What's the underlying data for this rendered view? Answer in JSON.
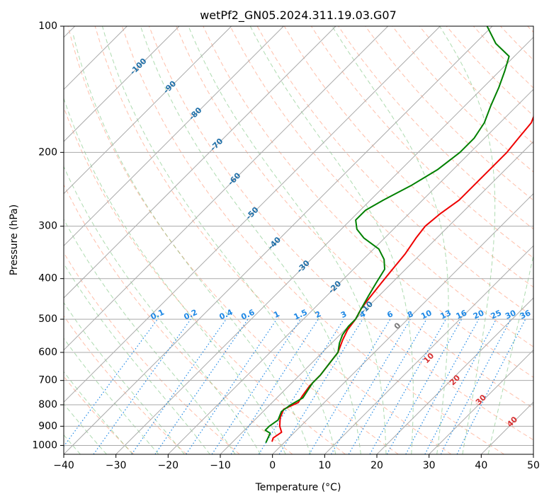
{
  "chart_data": {
    "type": "line",
    "title": "wetPf2_GN05.2024.311.19.03.G07",
    "xlabel": "Temperature (°C)",
    "ylabel": "Pressure (hPa)",
    "xlim": [
      -40,
      50
    ],
    "ylim": [
      1050,
      100
    ],
    "y_scale": "log",
    "grid": true,
    "x_ticks": [
      -40,
      -30,
      -20,
      -10,
      0,
      10,
      20,
      30,
      40,
      50
    ],
    "y_ticks": [
      100,
      200,
      300,
      400,
      500,
      600,
      700,
      800,
      900,
      1000
    ],
    "colors": {
      "temperature": "#ee0000",
      "dewpoint": "#008000",
      "isotherm_label": "#1f6fa8",
      "mixing_ratio": "#1e88e5",
      "moist_adiabat": "#d63031",
      "dry_adiabat": "#ff8a65",
      "moist_adiabat_lines": "#4caf50",
      "grid": "#aaaaaa"
    },
    "isotherm_labels": [
      {
        "value": "-100",
        "T": -100,
        "p": 125
      },
      {
        "value": "-90",
        "T": -90,
        "p": 140
      },
      {
        "value": "-80",
        "T": -80,
        "p": 162
      },
      {
        "value": "-70",
        "T": -70,
        "p": 192
      },
      {
        "value": "-60",
        "T": -60,
        "p": 232
      },
      {
        "value": "-50",
        "T": -50,
        "p": 280
      },
      {
        "value": "-40",
        "T": -40,
        "p": 330
      },
      {
        "value": "-30",
        "T": -30,
        "p": 375
      },
      {
        "value": "-20",
        "T": -20,
        "p": 420
      },
      {
        "value": "-10",
        "T": -10,
        "p": 470
      }
    ],
    "mixing_ratio_labels": [
      "0.1",
      "0.2",
      "0.4",
      "0.6",
      "1",
      "1.5",
      "2",
      "3",
      "4",
      "6",
      "8",
      "10",
      "13",
      "16",
      "20",
      "25",
      "30",
      "36"
    ],
    "mixing_ratio_values": [
      0.1,
      0.2,
      0.4,
      0.6,
      1,
      1.5,
      2,
      3,
      4,
      6,
      8,
      10,
      13,
      16,
      20,
      25,
      30,
      36
    ],
    "moist_adiabat_labels": [
      {
        "value": "0",
        "T": 24,
        "p": 520
      },
      {
        "value": "10",
        "T": 30,
        "p": 620
      },
      {
        "value": "20",
        "T": 35,
        "p": 700
      },
      {
        "value": "30",
        "T": 40,
        "p": 780
      },
      {
        "value": "40",
        "T": 46,
        "p": 880
      }
    ],
    "series": [
      {
        "name": "",
        "role": "temperature",
        "points": [
          {
            "p": 980,
            "T": -2.5
          },
          {
            "p": 960,
            "T": -3
          },
          {
            "p": 930,
            "T": -2.5
          },
          {
            "p": 900,
            "T": -4
          },
          {
            "p": 860,
            "T": -5.5
          },
          {
            "p": 820,
            "T": -6.5
          },
          {
            "p": 790,
            "T": -5
          },
          {
            "p": 760,
            "T": -5.5
          },
          {
            "p": 720,
            "T": -6
          },
          {
            "p": 680,
            "T": -6
          },
          {
            "p": 640,
            "T": -6.5
          },
          {
            "p": 600,
            "T": -7
          },
          {
            "p": 560,
            "T": -8.5
          },
          {
            "p": 530,
            "T": -9.5
          },
          {
            "p": 500,
            "T": -10
          },
          {
            "p": 470,
            "T": -11
          },
          {
            "p": 440,
            "T": -11.5
          },
          {
            "p": 410,
            "T": -12
          },
          {
            "p": 380,
            "T": -12.5
          },
          {
            "p": 350,
            "T": -13
          },
          {
            "p": 320,
            "T": -14
          },
          {
            "p": 300,
            "T": -14.5
          },
          {
            "p": 280,
            "T": -14
          },
          {
            "p": 260,
            "T": -13
          },
          {
            "p": 240,
            "T": -13
          },
          {
            "p": 220,
            "T": -13
          },
          {
            "p": 200,
            "T": -13
          },
          {
            "p": 185,
            "T": -13.5
          },
          {
            "p": 170,
            "T": -14
          },
          {
            "p": 155,
            "T": -16
          },
          {
            "p": 140,
            "T": -19
          },
          {
            "p": 125,
            "T": -22
          },
          {
            "p": 112,
            "T": -26
          },
          {
            "p": 100,
            "T": -31
          }
        ]
      },
      {
        "name": "",
        "role": "dewpoint",
        "points": [
          {
            "p": 985,
            "T": -3.5
          },
          {
            "p": 960,
            "T": -4
          },
          {
            "p": 935,
            "T": -4.5
          },
          {
            "p": 920,
            "T": -6
          },
          {
            "p": 900,
            "T": -6
          },
          {
            "p": 870,
            "T": -5.5
          },
          {
            "p": 830,
            "T": -6.5
          },
          {
            "p": 800,
            "T": -6
          },
          {
            "p": 770,
            "T": -5
          },
          {
            "p": 740,
            "T": -5.5
          },
          {
            "p": 710,
            "T": -6
          },
          {
            "p": 680,
            "T": -6
          },
          {
            "p": 640,
            "T": -6.5
          },
          {
            "p": 600,
            "T": -7
          },
          {
            "p": 570,
            "T": -8.5
          },
          {
            "p": 545,
            "T": -9.5
          },
          {
            "p": 520,
            "T": -10
          },
          {
            "p": 500,
            "T": -10
          },
          {
            "p": 470,
            "T": -11
          },
          {
            "p": 440,
            "T": -12
          },
          {
            "p": 410,
            "T": -13
          },
          {
            "p": 380,
            "T": -14
          },
          {
            "p": 360,
            "T": -16
          },
          {
            "p": 340,
            "T": -19
          },
          {
            "p": 320,
            "T": -24
          },
          {
            "p": 305,
            "T": -27
          },
          {
            "p": 290,
            "T": -29
          },
          {
            "p": 275,
            "T": -29
          },
          {
            "p": 260,
            "T": -27.5
          },
          {
            "p": 240,
            "T": -25
          },
          {
            "p": 220,
            "T": -23
          },
          {
            "p": 200,
            "T": -22
          },
          {
            "p": 185,
            "T": -22
          },
          {
            "p": 170,
            "T": -23
          },
          {
            "p": 155,
            "T": -25
          },
          {
            "p": 140,
            "T": -27
          },
          {
            "p": 128,
            "T": -29
          },
          {
            "p": 118,
            "T": -31
          },
          {
            "p": 110,
            "T": -36
          },
          {
            "p": 100,
            "T": -41
          }
        ]
      }
    ]
  }
}
